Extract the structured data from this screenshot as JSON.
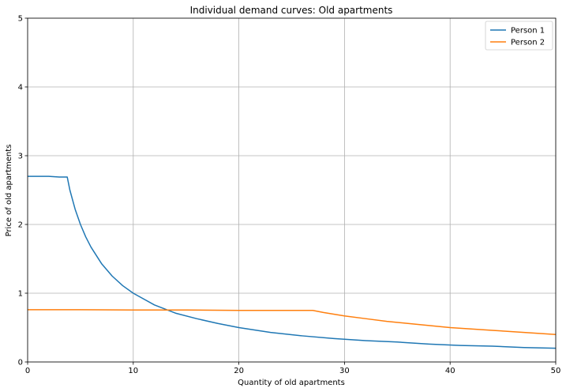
{
  "chart_data": {
    "type": "line",
    "title": "Individual demand curves: Old apartments",
    "xlabel": "Quantity of old apartments",
    "ylabel": "Price of old apartments",
    "xlim": [
      0,
      50
    ],
    "ylim": [
      0,
      5
    ],
    "xticks": [
      0,
      10,
      20,
      30,
      40,
      50
    ],
    "yticks": [
      0,
      1,
      2,
      3,
      4,
      5
    ],
    "grid": true,
    "legend": "top-right",
    "series": [
      {
        "name": "Person 1",
        "color": "#1f77b4",
        "x": [
          0,
          1,
          2,
          3,
          3.75,
          4.0,
          4.5,
          5,
          5.5,
          6,
          7,
          8,
          9,
          10,
          12,
          14,
          16,
          18,
          20,
          23,
          26,
          29,
          32,
          35,
          38,
          41,
          44,
          47,
          50
        ],
        "y": [
          2.7,
          2.7,
          2.7,
          2.69,
          2.69,
          2.5,
          2.22,
          2.0,
          1.82,
          1.67,
          1.43,
          1.25,
          1.11,
          1.0,
          0.83,
          0.71,
          0.63,
          0.56,
          0.5,
          0.43,
          0.38,
          0.34,
          0.31,
          0.29,
          0.26,
          0.24,
          0.23,
          0.21,
          0.2
        ]
      },
      {
        "name": "Person 2",
        "color": "#ff7f0e",
        "x": [
          0,
          5,
          10,
          15,
          20,
          25,
          27,
          28,
          30,
          32,
          34,
          36,
          38,
          40,
          42,
          44,
          46,
          48,
          50
        ],
        "y": [
          0.76,
          0.76,
          0.755,
          0.755,
          0.75,
          0.75,
          0.75,
          0.72,
          0.67,
          0.63,
          0.59,
          0.56,
          0.53,
          0.5,
          0.48,
          0.46,
          0.44,
          0.42,
          0.4
        ]
      }
    ]
  }
}
